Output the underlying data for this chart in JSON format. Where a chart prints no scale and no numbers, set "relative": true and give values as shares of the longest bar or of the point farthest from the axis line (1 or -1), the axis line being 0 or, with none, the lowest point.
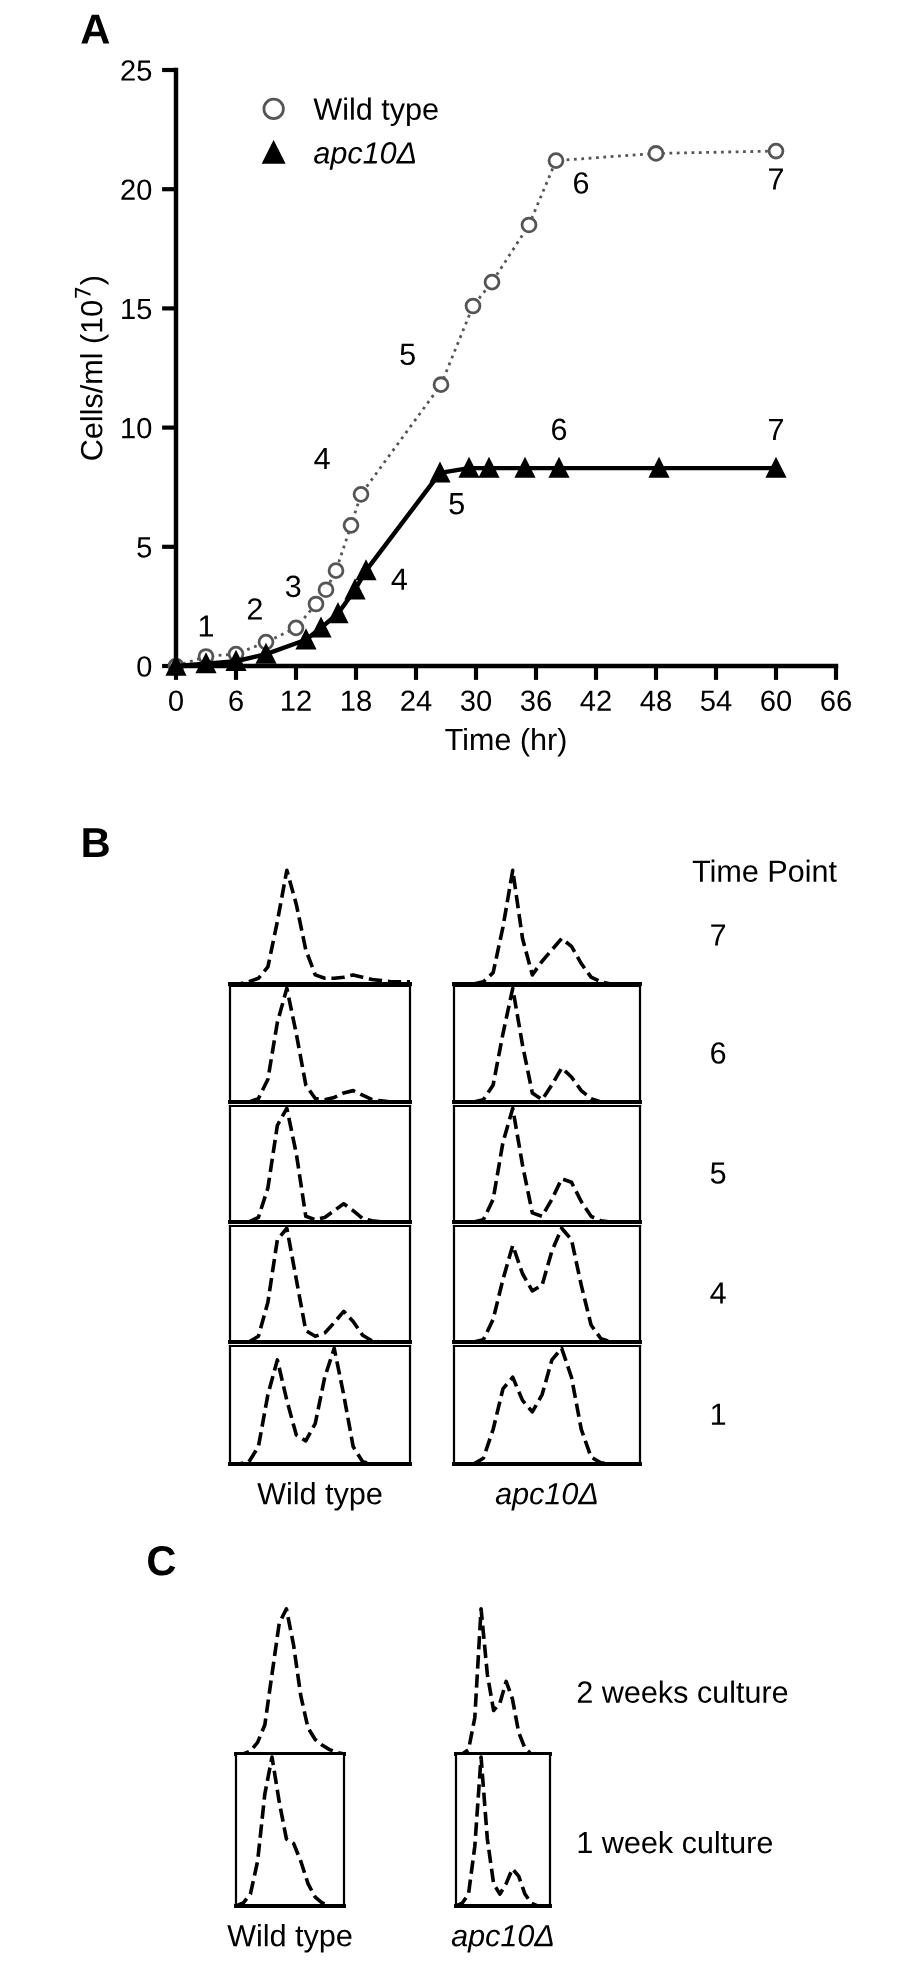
{
  "chart_data": [
    {
      "type": "line",
      "title": "A",
      "xlabel": "Time (hr)",
      "ylabel": "Cells/ml (10$^{7}$)",
      "xlim": [
        0,
        66
      ],
      "xticks": [
        0,
        6,
        12,
        18,
        24,
        30,
        36,
        42,
        48,
        54,
        60,
        66
      ],
      "ylim": [
        0,
        25
      ],
      "yticks": [
        0,
        5,
        10,
        15,
        20,
        25
      ],
      "grid": false,
      "legend": "top left",
      "series": [
        {
          "name": "Wild type",
          "color": "#555555",
          "marker": "circle",
          "line_style": "dotted",
          "x": [
            0,
            3,
            6,
            9,
            12,
            14,
            15,
            16,
            17.5,
            18.5,
            26.5,
            29.7,
            31.6,
            35.3,
            38,
            48,
            60
          ],
          "values": [
            0,
            0.4,
            0.5,
            1.0,
            1.6,
            2.6,
            3.2,
            4.0,
            5.9,
            7.2,
            11.8,
            15.1,
            16.1,
            18.5,
            21.2,
            21.5,
            21.6
          ]
        },
        {
          "name": "apc10Δ",
          "color": "#000000",
          "marker": "triangle",
          "line_style": "solid",
          "x": [
            0,
            3,
            6,
            9,
            13,
            14.5,
            16.2,
            17.9,
            19,
            26.4,
            29.3,
            31.3,
            34.9,
            38.3,
            48.3,
            60
          ],
          "values": [
            0,
            0.1,
            0.2,
            0.5,
            1.1,
            1.6,
            2.2,
            3.2,
            4.0,
            8.1,
            8.3,
            8.3,
            8.3,
            8.3,
            8.3,
            8.3
          ]
        }
      ],
      "annotations": [
        {
          "text": "1",
          "x": 3,
          "y": 0.4
        },
        {
          "text": "2",
          "x": 9,
          "y": 1.0
        },
        {
          "text": "3",
          "x": 12,
          "y": 1.6
        },
        {
          "text": "4",
          "x": 18.5,
          "y": 7.2
        },
        {
          "text": "5",
          "x": 26.5,
          "y": 11.8
        },
        {
          "text": "6",
          "x": 38,
          "y": 21.2
        },
        {
          "text": "7",
          "x": 60,
          "y": 21.6
        },
        {
          "text": "4",
          "x": 19,
          "y": 4.0
        },
        {
          "text": "5",
          "x": 26.4,
          "y": 8.1
        },
        {
          "text": "6",
          "x": 38.3,
          "y": 8.3
        },
        {
          "text": "7",
          "x": 60,
          "y": 8.3
        }
      ]
    },
    {
      "type": "line",
      "title": "B",
      "relative": true,
      "line_style": "dashed",
      "color": "#000000",
      "categories": [
        null,
        null,
        null,
        null,
        null,
        null,
        null,
        null,
        null,
        null,
        null,
        null,
        null,
        null,
        null,
        null,
        null,
        null,
        null,
        null
      ],
      "values": [
        0,
        0,
        0.02,
        0.05,
        0.15,
        0.55,
        1.0,
        0.7,
        0.3,
        0.08,
        0.05,
        0.05,
        0.06,
        0.08,
        0.06,
        0.04,
        0.03,
        0.02,
        0.02,
        0.02
      ]
    },
    {
      "type": "line",
      "relative": true,
      "line_style": "dashed",
      "color": "#000000",
      "categories": [
        null,
        null,
        null,
        null,
        null,
        null,
        null,
        null,
        null,
        null,
        null,
        null,
        null,
        null,
        null,
        null,
        null,
        null,
        null,
        null
      ],
      "values": [
        0,
        0,
        0,
        0.02,
        0.1,
        0.5,
        1.0,
        0.4,
        0.08,
        0.2,
        0.3,
        0.4,
        0.33,
        0.18,
        0.06,
        0.02,
        0,
        0,
        0,
        0
      ],
      "annotations": [
        "Time Point",
        "7"
      ]
    },
    {
      "type": "line",
      "relative": true,
      "line_style": "dashed",
      "color": "#000000",
      "categories": [
        null,
        null,
        null,
        null,
        null,
        null,
        null,
        null,
        null,
        null,
        null,
        null,
        null,
        null,
        null,
        null,
        null,
        null,
        null,
        null
      ],
      "values": [
        0,
        0,
        0,
        0.03,
        0.2,
        0.7,
        1.0,
        0.6,
        0.15,
        0.03,
        0.02,
        0.04,
        0.08,
        0.1,
        0.06,
        0.02,
        0.01,
        0,
        0,
        0
      ]
    },
    {
      "type": "line",
      "relative": true,
      "line_style": "dashed",
      "color": "#000000",
      "categories": [
        null,
        null,
        null,
        null,
        null,
        null,
        null,
        null,
        null,
        null,
        null,
        null,
        null,
        null,
        null,
        null,
        null,
        null,
        null,
        null
      ],
      "values": [
        0,
        0,
        0,
        0.02,
        0.15,
        0.6,
        1.0,
        0.5,
        0.08,
        0.02,
        0.15,
        0.3,
        0.22,
        0.1,
        0.03,
        0,
        0,
        0,
        0,
        0
      ],
      "annotations": [
        "6"
      ]
    },
    {
      "type": "line",
      "relative": true,
      "line_style": "dashed",
      "color": "#000000",
      "categories": [
        null,
        null,
        null,
        null,
        null,
        null,
        null,
        null,
        null,
        null,
        null,
        null,
        null,
        null,
        null,
        null,
        null,
        null,
        null,
        null
      ],
      "values": [
        0,
        0,
        0,
        0.04,
        0.3,
        0.85,
        1.0,
        0.6,
        0.05,
        0.02,
        0.04,
        0.1,
        0.16,
        0.1,
        0.03,
        0.01,
        0,
        0,
        0,
        0
      ]
    },
    {
      "type": "line",
      "relative": true,
      "line_style": "dashed",
      "color": "#000000",
      "categories": [
        null,
        null,
        null,
        null,
        null,
        null,
        null,
        null,
        null,
        null,
        null,
        null,
        null,
        null,
        null,
        null,
        null,
        null,
        null,
        null
      ],
      "values": [
        0,
        0,
        0,
        0.02,
        0.2,
        0.7,
        1.0,
        0.5,
        0.08,
        0.05,
        0.2,
        0.38,
        0.35,
        0.18,
        0.05,
        0.01,
        0,
        0,
        0,
        0
      ],
      "annotations": [
        "5"
      ]
    },
    {
      "type": "line",
      "relative": true,
      "line_style": "dashed",
      "color": "#000000",
      "categories": [
        null,
        null,
        null,
        null,
        null,
        null,
        null,
        null,
        null,
        null,
        null,
        null,
        null,
        null,
        null,
        null,
        null,
        null,
        null,
        null
      ],
      "values": [
        0,
        0,
        0,
        0.05,
        0.35,
        0.9,
        1.0,
        0.55,
        0.1,
        0.05,
        0.08,
        0.17,
        0.27,
        0.18,
        0.06,
        0.01,
        0,
        0,
        0,
        0
      ]
    },
    {
      "type": "line",
      "relative": true,
      "line_style": "dashed",
      "color": "#000000",
      "categories": [
        null,
        null,
        null,
        null,
        null,
        null,
        null,
        null,
        null,
        null,
        null,
        null,
        null,
        null,
        null,
        null,
        null,
        null,
        null,
        null
      ],
      "values": [
        0,
        0,
        0,
        0.02,
        0.2,
        0.55,
        0.85,
        0.6,
        0.45,
        0.5,
        0.8,
        1.0,
        0.9,
        0.5,
        0.15,
        0.03,
        0,
        0,
        0,
        0
      ],
      "annotations": [
        "4"
      ]
    },
    {
      "type": "line",
      "relative": true,
      "line_style": "dashed",
      "color": "#000000",
      "xlabel": "Wild type",
      "categories": [
        null,
        null,
        null,
        null,
        null,
        null,
        null,
        null,
        null,
        null,
        null,
        null,
        null,
        null,
        null,
        null,
        null,
        null,
        null,
        null
      ],
      "values": [
        0,
        0,
        0.02,
        0.15,
        0.6,
        0.9,
        0.55,
        0.25,
        0.2,
        0.35,
        0.75,
        1.0,
        0.6,
        0.15,
        0.02,
        0,
        0,
        0,
        0,
        0
      ]
    },
    {
      "type": "line",
      "relative": true,
      "line_style": "dashed",
      "color": "#000000",
      "xlabel": "apc10Δ",
      "categories": [
        null,
        null,
        null,
        null,
        null,
        null,
        null,
        null,
        null,
        null,
        null,
        null,
        null,
        null,
        null,
        null,
        null,
        null,
        null,
        null
      ],
      "values": [
        0,
        0,
        0,
        0.05,
        0.3,
        0.65,
        0.75,
        0.55,
        0.45,
        0.6,
        0.9,
        1.0,
        0.75,
        0.3,
        0.06,
        0.01,
        0,
        0,
        0,
        0
      ],
      "annotations": [
        "1"
      ]
    },
    {
      "type": "line",
      "title": "C",
      "relative": true,
      "line_style": "dashed",
      "color": "#000000",
      "categories": [
        null,
        null,
        null,
        null,
        null,
        null,
        null,
        null,
        null,
        null,
        null,
        null,
        null,
        null,
        null,
        null
      ],
      "values": [
        0,
        0,
        0.02,
        0.08,
        0.2,
        0.55,
        0.9,
        1.0,
        0.75,
        0.4,
        0.18,
        0.1,
        0.06,
        0.03,
        0.01,
        0
      ]
    },
    {
      "type": "line",
      "relative": true,
      "line_style": "dashed",
      "color": "#000000",
      "categories": [
        null,
        null,
        null,
        null,
        null,
        null,
        null,
        null,
        null,
        null,
        null,
        null,
        null,
        null,
        null,
        null
      ],
      "values": [
        0,
        0,
        0.03,
        0.25,
        1.0,
        0.55,
        0.3,
        0.35,
        0.5,
        0.38,
        0.15,
        0.04,
        0,
        0,
        0,
        0
      ],
      "annotations": [
        "2 weeks culture"
      ]
    },
    {
      "type": "line",
      "relative": true,
      "line_style": "dashed",
      "color": "#000000",
      "xlabel": "Wild type",
      "categories": [
        null,
        null,
        null,
        null,
        null,
        null,
        null,
        null,
        null,
        null,
        null,
        null,
        null,
        null,
        null,
        null
      ],
      "values": [
        0,
        0.02,
        0.08,
        0.3,
        0.75,
        1.0,
        0.7,
        0.45,
        0.42,
        0.3,
        0.15,
        0.06,
        0.02,
        0,
        0,
        0
      ]
    },
    {
      "type": "line",
      "relative": true,
      "line_style": "dashed",
      "color": "#000000",
      "xlabel": "apc10Δ",
      "categories": [
        null,
        null,
        null,
        null,
        null,
        null,
        null,
        null,
        null,
        null,
        null,
        null,
        null,
        null,
        null,
        null
      ],
      "values": [
        0,
        0.02,
        0.08,
        0.4,
        1.0,
        0.45,
        0.15,
        0.08,
        0.15,
        0.25,
        0.2,
        0.08,
        0.02,
        0,
        0,
        0
      ],
      "annotations": [
        "1 week culture"
      ]
    }
  ]
}
